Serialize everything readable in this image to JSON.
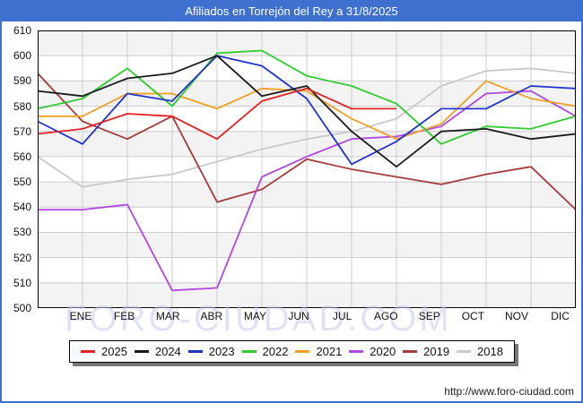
{
  "title_bar": {
    "text": "Afiliados en Torrejón del Rey a 31/8/2025"
  },
  "watermark": "FORO-CIUDAD.COM",
  "footer": {
    "url": "http://www.foro-ciudad.com"
  },
  "chart_data": {
    "type": "line",
    "title": "Afiliados en Torrejón del Rey a 31/8/2025",
    "x_labels": [
      "ENE",
      "FEB",
      "MAR",
      "ABR",
      "MAY",
      "JUN",
      "JUL",
      "AGO",
      "SEP",
      "OCT",
      "NOV",
      "DIC"
    ],
    "points_note": "13 points per series: left-axis start value followed by one value per month; 2025 series ends at AGO (data to 31/8/2025)",
    "ylim": [
      500,
      610
    ],
    "y_ticks": [
      610,
      600,
      590,
      580,
      570,
      560,
      550,
      540,
      530,
      520,
      510,
      500
    ],
    "grid": true,
    "legend_position": "bottom",
    "series": [
      {
        "name": "2025",
        "color": "#e02222",
        "values": [
          569,
          571,
          577,
          576,
          567,
          582,
          587,
          579,
          579
        ]
      },
      {
        "name": "2024",
        "color": "#1a1a1a",
        "values": [
          586,
          584,
          591,
          593,
          600,
          584,
          588,
          570,
          556,
          570,
          571,
          567,
          569
        ]
      },
      {
        "name": "2023",
        "color": "#2233cc",
        "values": [
          574,
          565,
          585,
          582,
          600,
          596,
          583,
          557,
          566,
          579,
          579,
          588,
          587
        ]
      },
      {
        "name": "2022",
        "color": "#2ecc2e",
        "values": [
          579,
          583,
          595,
          580,
          601,
          602,
          592,
          588,
          581,
          565,
          572,
          571,
          576
        ]
      },
      {
        "name": "2021",
        "color": "#efa023",
        "values": [
          576,
          576,
          585,
          585,
          579,
          587,
          586,
          575,
          567,
          573,
          590,
          583,
          580
        ]
      },
      {
        "name": "2020",
        "color": "#b048e0",
        "values": [
          539,
          539,
          541,
          507,
          508,
          552,
          560,
          567,
          568,
          572,
          585,
          586,
          576
        ]
      },
      {
        "name": "2019",
        "color": "#a53c3c",
        "values": [
          593,
          574,
          567,
          576,
          542,
          547,
          559,
          555,
          552,
          549,
          553,
          556,
          539
        ]
      },
      {
        "name": "2018",
        "color": "#c9c9c9",
        "values": [
          560,
          548,
          551,
          553,
          558,
          563,
          567,
          570,
          575,
          588,
          594,
          595,
          593
        ]
      }
    ]
  }
}
